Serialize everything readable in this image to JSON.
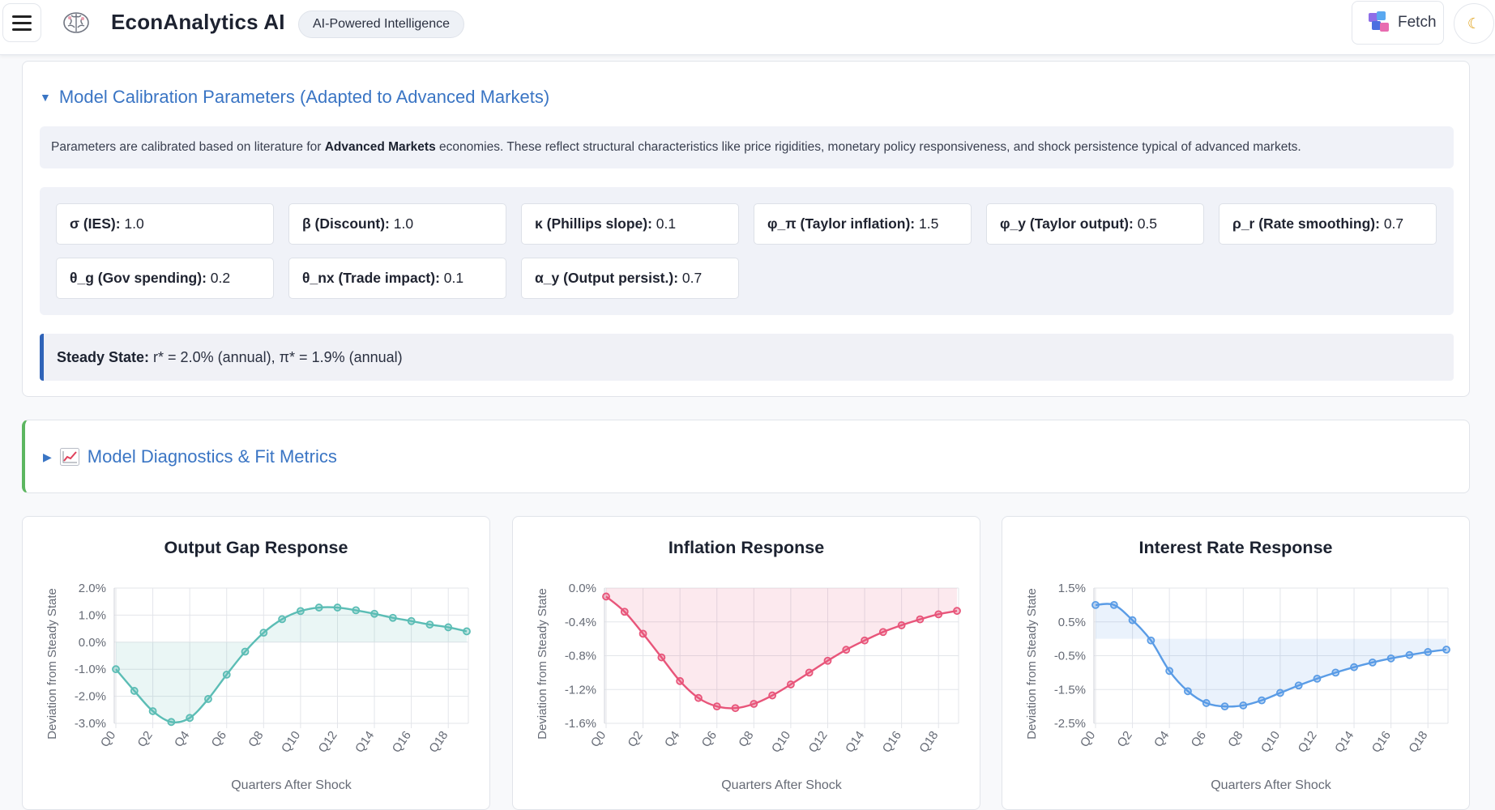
{
  "header": {
    "app_title": "EconAnalytics AI",
    "badge": "AI-Powered Intelligence",
    "fetch_label": "Fetch",
    "theme_icon": "☾"
  },
  "calibration": {
    "title": "Model Calibration Parameters (Adapted to Advanced Markets)",
    "desc_before": "Parameters are calibrated based on literature for ",
    "desc_bold": "Advanced Markets",
    "desc_after": " economies. These reflect structural characteristics like price rigidities, monetary policy responsiveness, and shock persistence typical of advanced markets.",
    "params": [
      {
        "label": "σ (IES):",
        "value": "1.0"
      },
      {
        "label": "β (Discount):",
        "value": "1.0"
      },
      {
        "label": "κ (Phillips slope):",
        "value": "0.1"
      },
      {
        "label": "φ_π (Taylor inflation):",
        "value": "1.5"
      },
      {
        "label": "φ_y (Taylor output):",
        "value": "0.5"
      },
      {
        "label": "ρ_r (Rate smoothing):",
        "value": "0.7"
      },
      {
        "label": "θ_g (Gov spending):",
        "value": "0.2"
      },
      {
        "label": "θ_nx (Trade impact):",
        "value": "0.1"
      },
      {
        "label": "α_y (Output persist.):",
        "value": "0.7"
      }
    ],
    "steady_label": "Steady State:",
    "steady_value": " r* = 2.0% (annual), π* = 1.9% (annual)"
  },
  "diagnostics": {
    "title": "Model Diagnostics & Fit Metrics"
  },
  "chart_data": [
    {
      "type": "line",
      "title": "Output Gap Response",
      "xlabel": "Quarters After Shock",
      "ylabel": "Deviation from Steady State",
      "color": "#5bbdb5",
      "x": [
        "Q0",
        "Q1",
        "Q2",
        "Q3",
        "Q4",
        "Q5",
        "Q6",
        "Q7",
        "Q8",
        "Q9",
        "Q10",
        "Q11",
        "Q12",
        "Q13",
        "Q14",
        "Q15",
        "Q16",
        "Q17",
        "Q18",
        "Q19"
      ],
      "x_tick_labels": [
        "Q0",
        "Q2",
        "Q4",
        "Q6",
        "Q8",
        "Q10",
        "Q12",
        "Q14",
        "Q16",
        "Q18"
      ],
      "y_ticks": [
        2.0,
        1.0,
        0.0,
        -1.0,
        -2.0,
        -3.0
      ],
      "y_tick_labels": [
        "2.0%",
        "1.0%",
        "0.0%",
        "-1.0%",
        "-2.0%",
        "-3.0%"
      ],
      "ylim": [
        -3.0,
        2.0
      ],
      "baseline": 0.0,
      "values": [
        -1.0,
        -1.8,
        -2.55,
        -2.95,
        -2.8,
        -2.1,
        -1.2,
        -0.35,
        0.35,
        0.85,
        1.15,
        1.28,
        1.28,
        1.18,
        1.05,
        0.9,
        0.78,
        0.65,
        0.55,
        0.4
      ],
      "grid": true,
      "legend": "none"
    },
    {
      "type": "line",
      "title": "Inflation Response",
      "xlabel": "Quarters After Shock",
      "ylabel": "Deviation from Steady State",
      "color": "#e8557a",
      "x": [
        "Q0",
        "Q1",
        "Q2",
        "Q3",
        "Q4",
        "Q5",
        "Q6",
        "Q7",
        "Q8",
        "Q9",
        "Q10",
        "Q11",
        "Q12",
        "Q13",
        "Q14",
        "Q15",
        "Q16",
        "Q17",
        "Q18",
        "Q19"
      ],
      "x_tick_labels": [
        "Q0",
        "Q2",
        "Q4",
        "Q6",
        "Q8",
        "Q10",
        "Q12",
        "Q14",
        "Q16",
        "Q18"
      ],
      "y_ticks": [
        0.0,
        -0.4,
        -0.8,
        -1.2,
        -1.6
      ],
      "y_tick_labels": [
        "0.0%",
        "-0.4%",
        "-0.8%",
        "-1.2%",
        "-1.6%"
      ],
      "ylim": [
        -1.6,
        0.0
      ],
      "baseline": 0.0,
      "values": [
        -0.1,
        -0.28,
        -0.54,
        -0.82,
        -1.1,
        -1.3,
        -1.4,
        -1.42,
        -1.37,
        -1.27,
        -1.14,
        -1.0,
        -0.86,
        -0.73,
        -0.62,
        -0.52,
        -0.44,
        -0.37,
        -0.31,
        -0.27
      ],
      "grid": true,
      "legend": "none"
    },
    {
      "type": "line",
      "title": "Interest Rate Response",
      "xlabel": "Quarters After Shock",
      "ylabel": "Deviation from Steady State",
      "color": "#5a9ce6",
      "x": [
        "Q0",
        "Q1",
        "Q2",
        "Q3",
        "Q4",
        "Q5",
        "Q6",
        "Q7",
        "Q8",
        "Q9",
        "Q10",
        "Q11",
        "Q12",
        "Q13",
        "Q14",
        "Q15",
        "Q16",
        "Q17",
        "Q18",
        "Q19"
      ],
      "x_tick_labels": [
        "Q0",
        "Q2",
        "Q4",
        "Q6",
        "Q8",
        "Q10",
        "Q12",
        "Q14",
        "Q16",
        "Q18"
      ],
      "y_ticks": [
        1.5,
        0.5,
        -0.5,
        -1.5,
        -2.5
      ],
      "y_tick_labels": [
        "1.5%",
        "0.5%",
        "-0.5%",
        "-1.5%",
        "-2.5%"
      ],
      "ylim": [
        -2.5,
        1.5
      ],
      "baseline": 0.0,
      "values": [
        1.0,
        1.0,
        0.55,
        -0.05,
        -0.95,
        -1.55,
        -1.9,
        -2.0,
        -1.97,
        -1.82,
        -1.6,
        -1.38,
        -1.18,
        -1.0,
        -0.84,
        -0.7,
        -0.58,
        -0.48,
        -0.39,
        -0.32
      ],
      "grid": true,
      "legend": "none"
    }
  ]
}
